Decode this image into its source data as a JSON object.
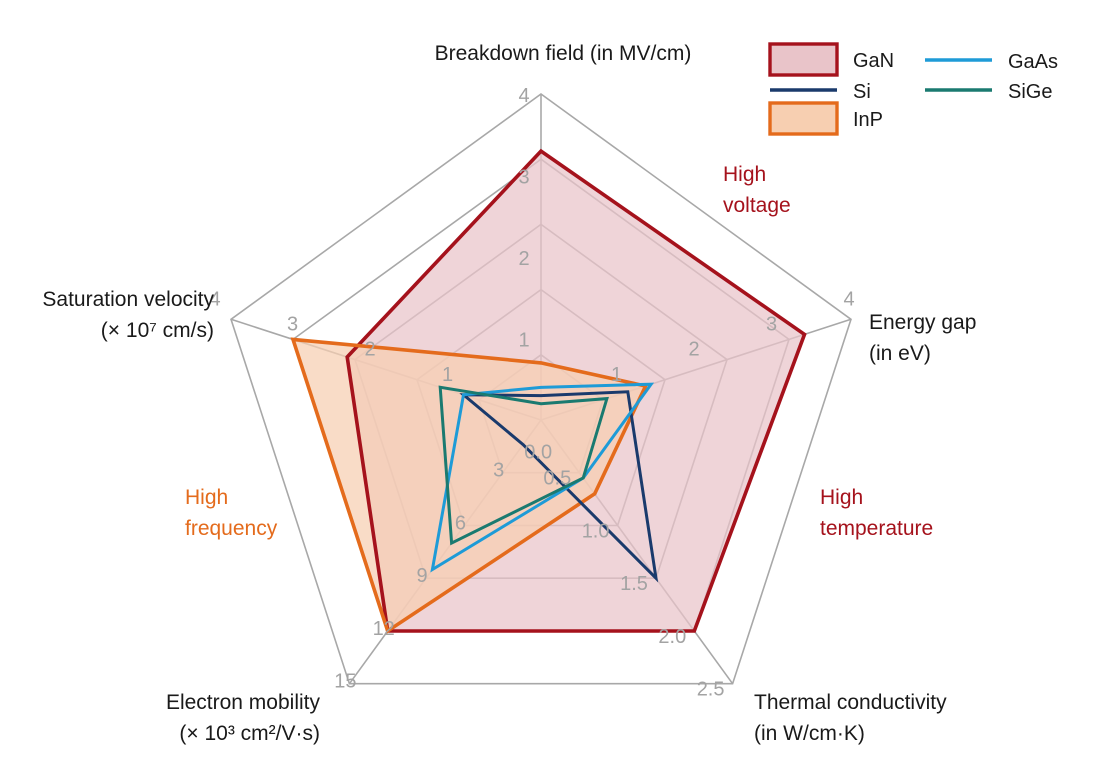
{
  "chart_data": {
    "type": "radar",
    "axes": [
      {
        "key": "breakdown",
        "label_lines": [
          "Breakdown field (in MV/cm)"
        ],
        "max": 4,
        "tick_labels": [
          "1",
          "2",
          "3",
          "4"
        ],
        "ticks": [
          1,
          2,
          3,
          4
        ]
      },
      {
        "key": "gap",
        "label_lines": [
          "Energy gap",
          "(in eV)"
        ],
        "max": 4,
        "tick_labels": [
          "1",
          "2",
          "3",
          "4"
        ],
        "ticks": [
          1,
          2,
          3,
          4
        ]
      },
      {
        "key": "thermal",
        "label_lines": [
          "Thermal conductivity",
          "(in W/cm·K)"
        ],
        "max": 2.5,
        "tick_labels": [
          "0.0",
          "0.5",
          "1.0",
          "1.5",
          "2.0",
          "2.5"
        ],
        "ticks": [
          0,
          0.5,
          1.0,
          1.5,
          2.0,
          2.5
        ]
      },
      {
        "key": "mobility",
        "label_lines": [
          "Electron mobility",
          "(× 10³ cm²/V·s)"
        ],
        "max": 15,
        "tick_labels": [
          "3",
          "6",
          "9",
          "12",
          "15"
        ],
        "ticks": [
          3,
          6,
          9,
          12,
          15
        ]
      },
      {
        "key": "velocity",
        "label_lines": [
          "Saturation velocity",
          "(× 10⁷ cm/s)"
        ],
        "max": 4,
        "tick_labels": [
          "1",
          "2",
          "3",
          "4"
        ],
        "ticks": [
          1,
          2,
          3,
          4
        ]
      }
    ],
    "series": [
      {
        "name": "GaN",
        "values": [
          3.3,
          3.4,
          2.0,
          12.0,
          2.5
        ],
        "color": "#a5121c",
        "fill": "#e9c4c9",
        "filled": true
      },
      {
        "name": "InP",
        "values": [
          0.7,
          1.35,
          0.7,
          12.0,
          3.2
        ],
        "color": "#e46b1c",
        "fill": "#f7cfb1",
        "filled": true
      },
      {
        "name": "Si",
        "values": [
          0.3,
          1.12,
          1.5,
          1.4,
          1.0
        ],
        "color": "#1a3a6c",
        "filled": false
      },
      {
        "name": "GaAs",
        "values": [
          0.4,
          1.42,
          0.55,
          8.5,
          1.0
        ],
        "color": "#1e9bd7",
        "filled": false
      },
      {
        "name": "SiGe",
        "values": [
          0.2,
          0.85,
          0.55,
          7.0,
          1.3
        ],
        "color": "#1a7a70",
        "filled": false
      }
    ],
    "annotations": [
      {
        "lines": [
          "High",
          "voltage"
        ],
        "color": "#a5121c"
      },
      {
        "lines": [
          "High",
          "temperature"
        ],
        "color": "#a5121c"
      },
      {
        "lines": [
          "High",
          "frequency"
        ],
        "color": "#e46b1c"
      }
    ],
    "grid_levels": 5,
    "grid_color": "#a8a8a8",
    "legend_position": "top-right",
    "legend": [
      "GaN",
      "Si",
      "InP",
      "GaAs",
      "SiGe"
    ]
  }
}
